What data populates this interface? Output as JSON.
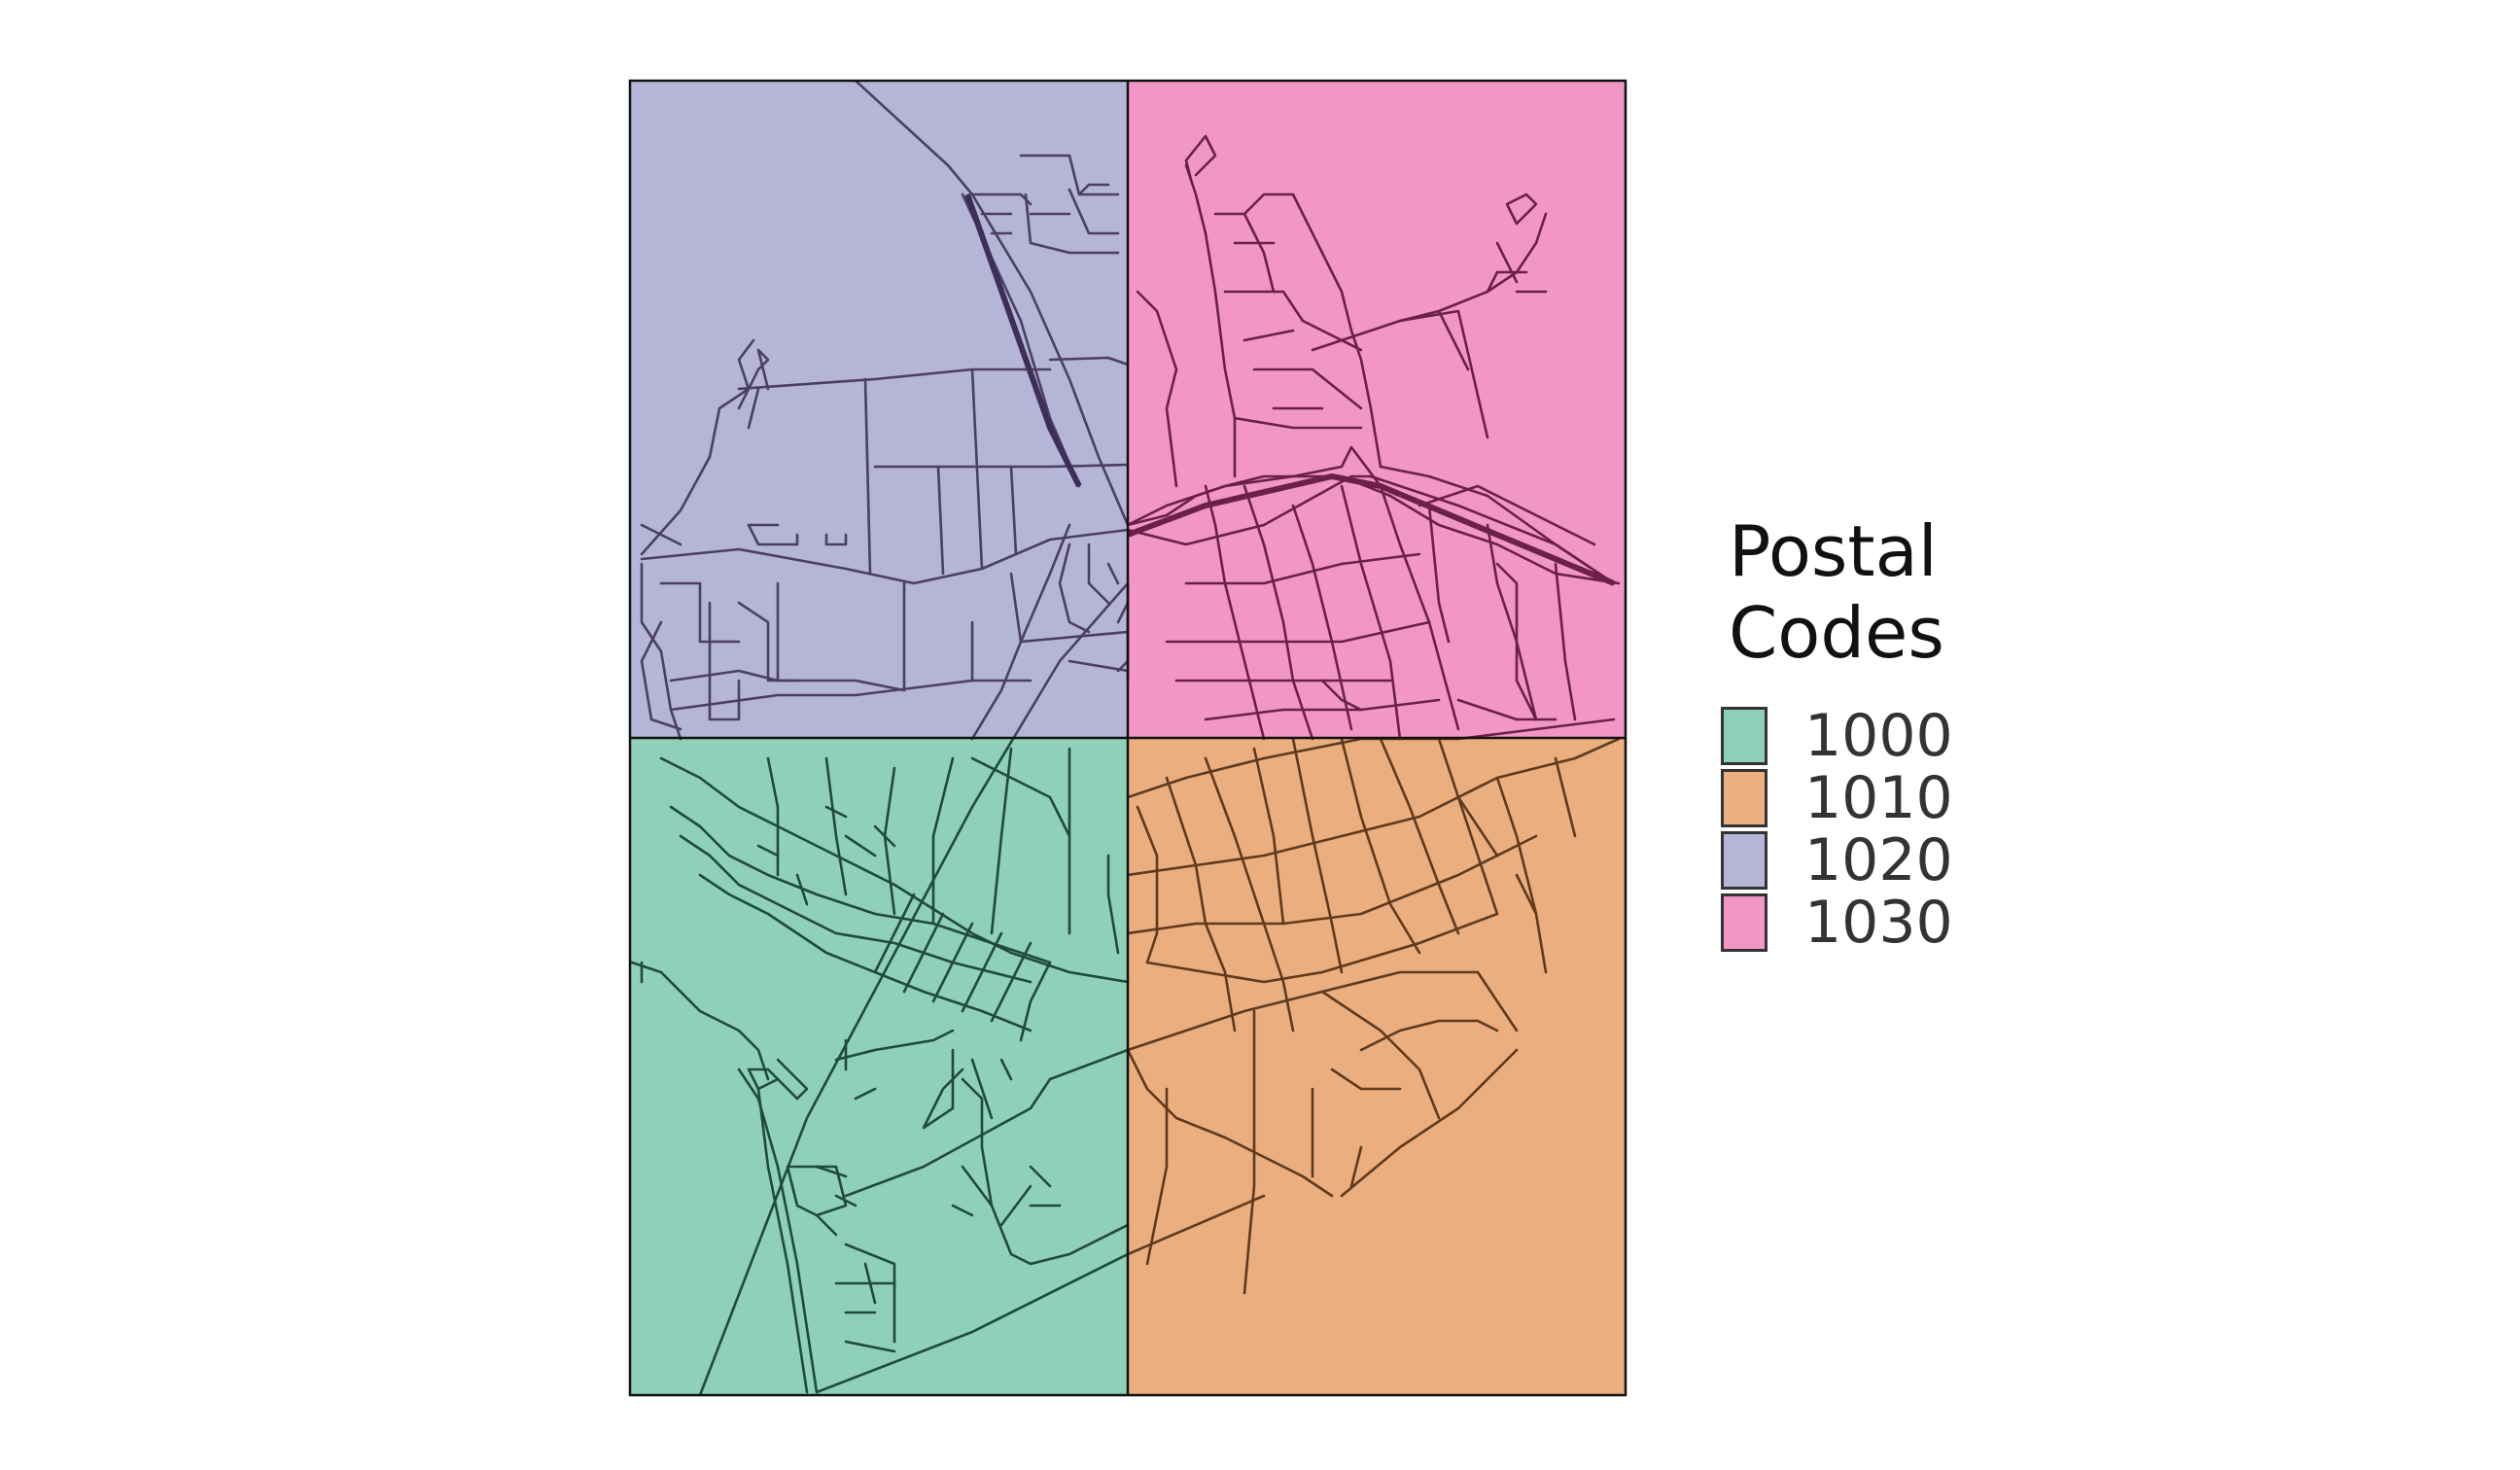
{
  "legend": {
    "title_line1": "Postal",
    "title_line2": "Codes",
    "items": [
      {
        "label": "1000",
        "color": "#8fd0b8"
      },
      {
        "label": "1010",
        "color": "#ebae7e"
      },
      {
        "label": "1020",
        "color": "#b5b5d7"
      },
      {
        "label": "1030",
        "color": "#f296c6"
      }
    ]
  },
  "zones": [
    {
      "code": "1020",
      "quadrant": "top-left",
      "color": "#b5b5d7",
      "road_color": "#4b3f63"
    },
    {
      "code": "1030",
      "quadrant": "top-right",
      "color": "#f296c6",
      "road_color": "#6b2048"
    },
    {
      "code": "1000",
      "quadrant": "bottom-left",
      "color": "#8fd0b8",
      "road_color": "#1f4a3c"
    },
    {
      "code": "1010",
      "quadrant": "bottom-right",
      "color": "#ebae7e",
      "road_color": "#5e3a1e"
    }
  ],
  "outline_color": "#111111"
}
